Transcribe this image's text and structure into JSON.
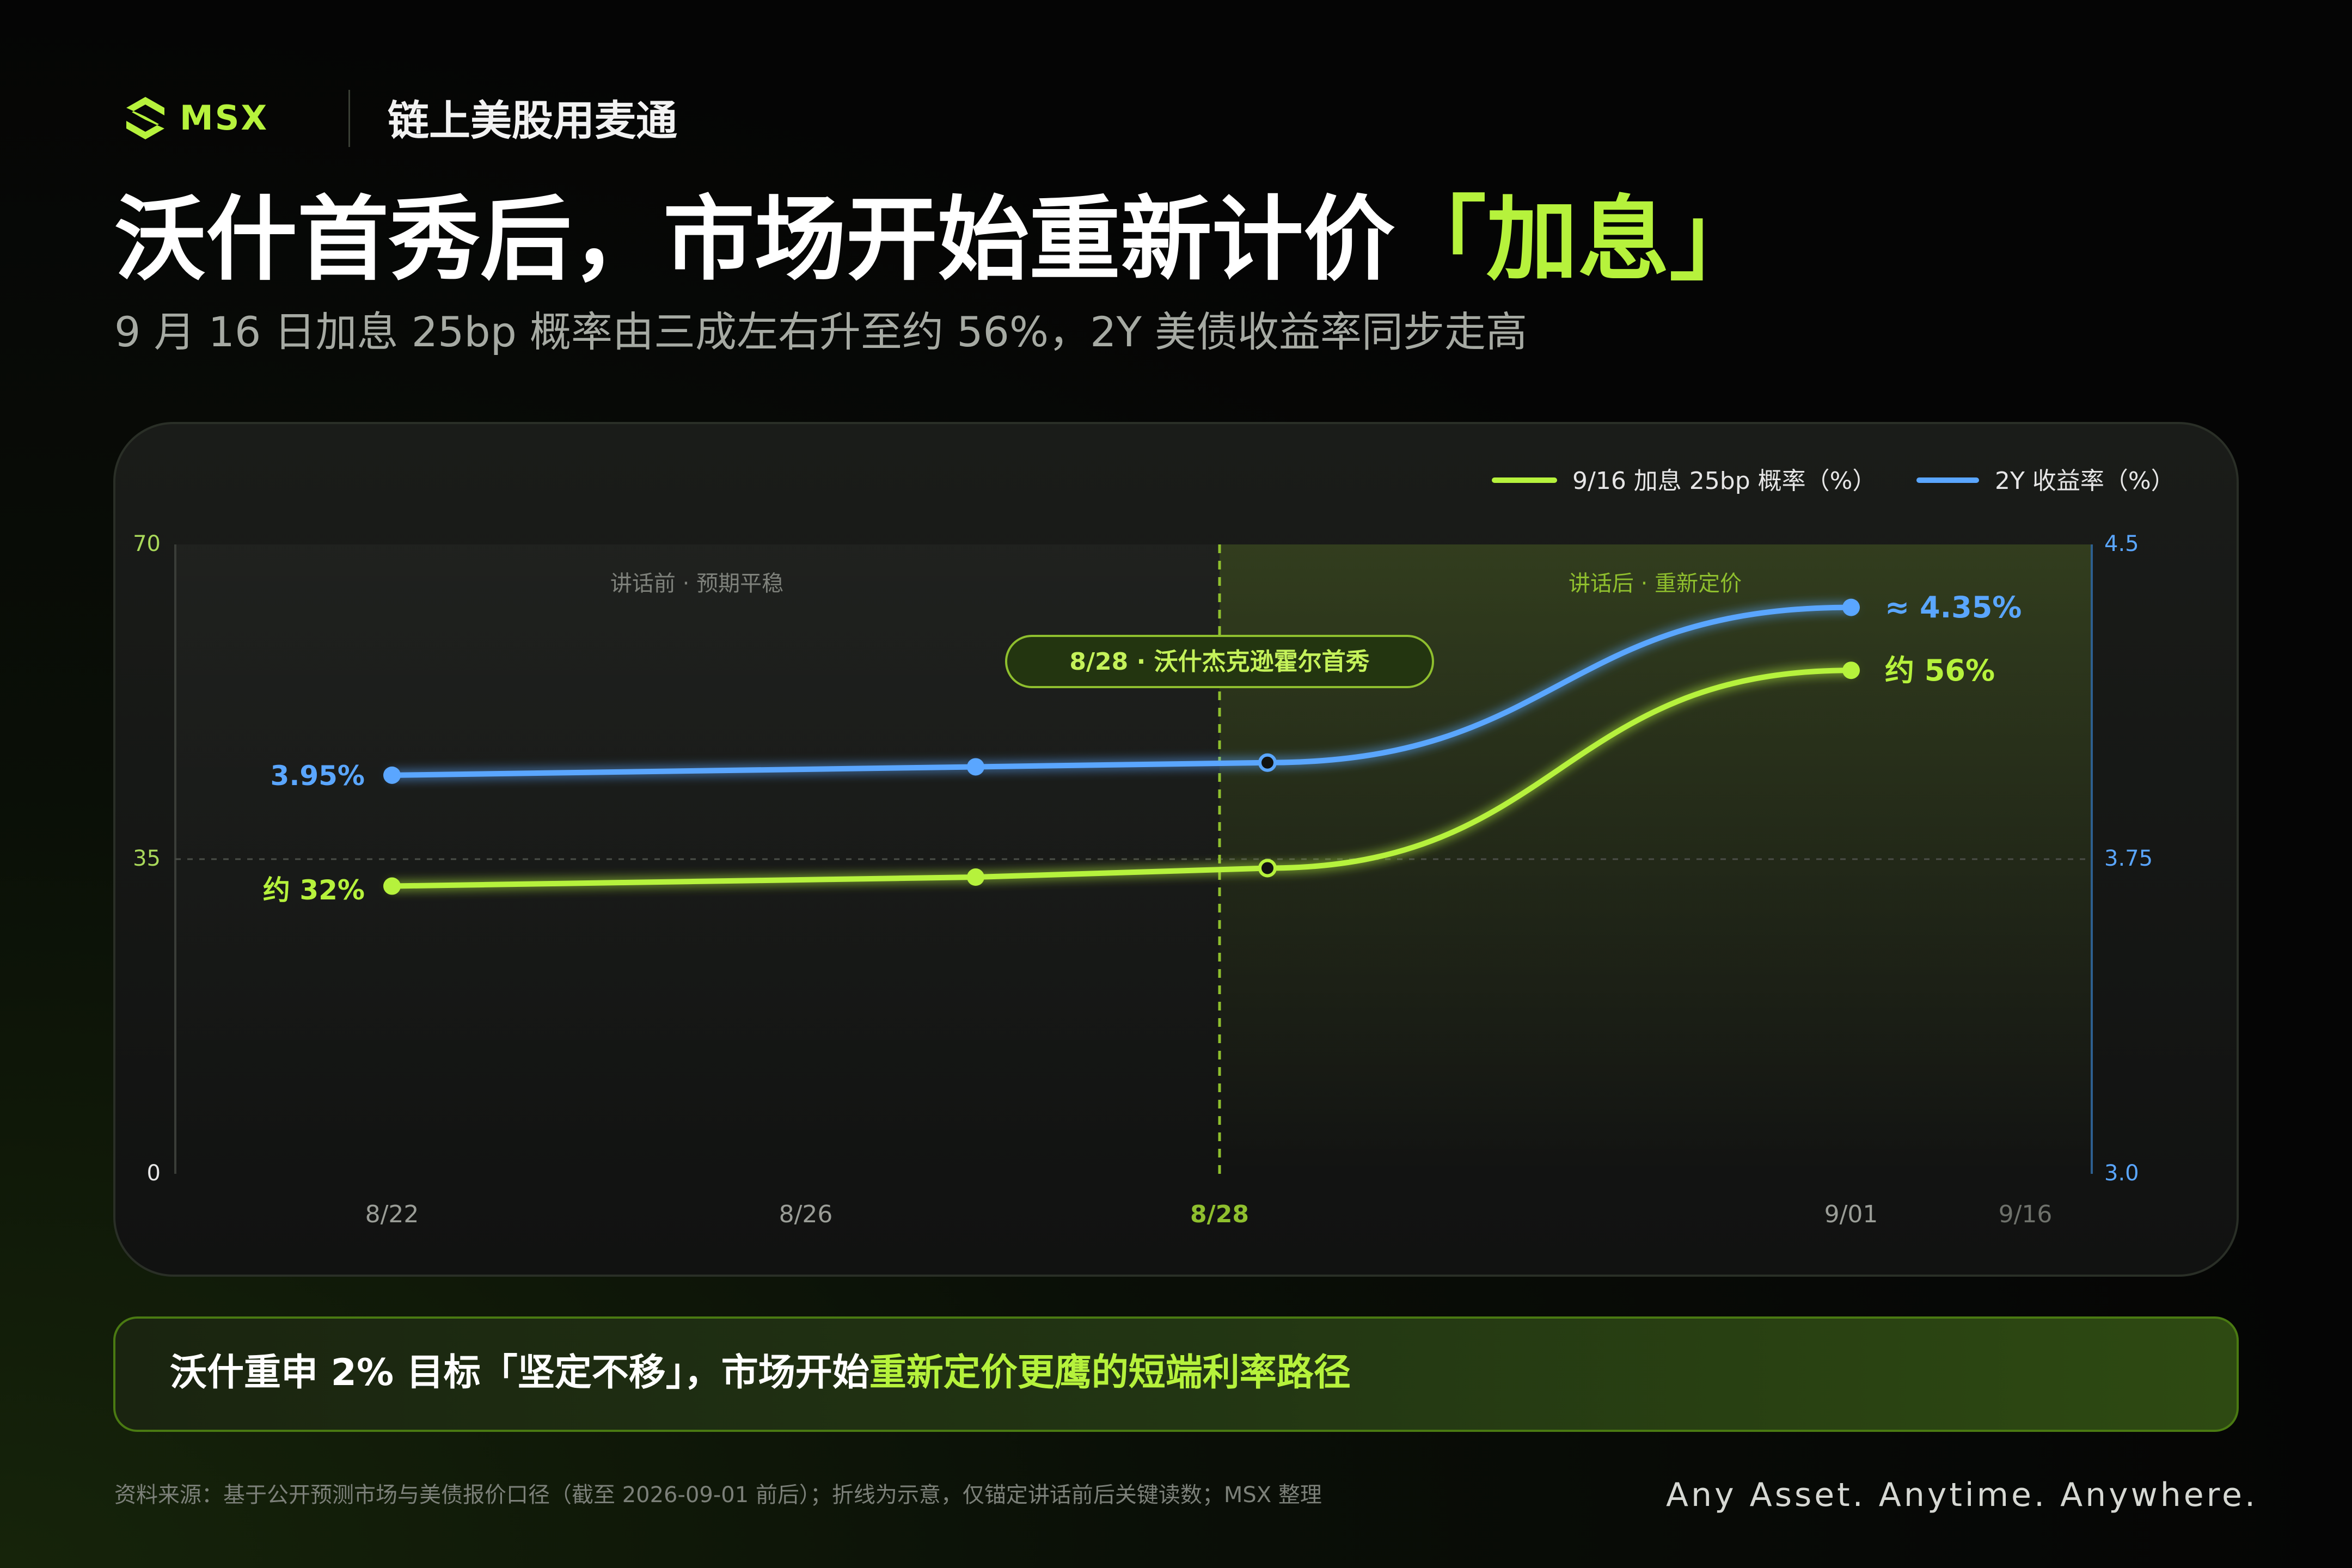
{
  "header": {
    "brand": "MSX",
    "tagline": "链上美股用麦通",
    "title_main": "沃什首秀后，市场开始重新计价",
    "title_highlight": "「加息」",
    "subtitle": "9 月 16 日加息 25bp 概率由三成左右升至约 56%，2Y 美债收益率同步走高"
  },
  "colors": {
    "accent_green": "#b6f23c",
    "accent_blue": "#5aa6ff",
    "background": "#050505"
  },
  "chart_data": {
    "type": "line",
    "title": "",
    "legend": [
      {
        "label": "9/16 加息 25bp 概率（%）",
        "color": "#b6f23c"
      },
      {
        "label": "2Y 收益率（%）",
        "color": "#5aa6ff"
      }
    ],
    "legend_position": "top-right",
    "x_ticks": [
      "8/22",
      "8/26",
      "8/28",
      "9/01",
      "9/16"
    ],
    "x_tick_values": [
      0,
      4,
      6,
      10,
      11.25
    ],
    "y_left": {
      "ticks": [
        "70",
        "35",
        "0"
      ],
      "range": [
        0,
        70
      ]
    },
    "y_right": {
      "ticks": [
        "4.5",
        "3.75",
        "3.0"
      ],
      "range": [
        3.0,
        4.5
      ]
    },
    "series": [
      {
        "name": "9/16 加息 25bp 概率（%）",
        "axis": "left",
        "color": "#b6f23c",
        "points": [
          {
            "x": 0,
            "y": 32
          },
          {
            "x": 4,
            "y": 33
          },
          {
            "x": 6,
            "y": 34
          },
          {
            "x": 10,
            "y": 56
          }
        ]
      },
      {
        "name": "2Y 收益率（%）",
        "axis": "right",
        "color": "#5aa6ff",
        "points": [
          {
            "x": 0,
            "y": 3.95
          },
          {
            "x": 4,
            "y": 3.97
          },
          {
            "x": 6,
            "y": 3.98
          },
          {
            "x": 10,
            "y": 4.35
          }
        ]
      }
    ],
    "data_labels": {
      "green_start": "约 32%",
      "green_end": "约 56%",
      "blue_start": "3.95%",
      "blue_end": "≈ 4.35%"
    },
    "regions": {
      "before": "讲话前 · 预期平稳",
      "after": "讲话后 · 重新定价"
    },
    "event": {
      "x": 6,
      "label": "8/28 · 沃什杰克逊霍尔首秀"
    },
    "grid": false
  },
  "insight": {
    "text_plain": "沃什重申 2% 目标「坚定不移」，市场开始",
    "text_highlight": "重新定价更鹰的短端利率路径"
  },
  "footer": {
    "source": "资料来源：基于公开预测市场与美债报价口径（截至 2026-09-01 前后）；折线为示意，仅锚定讲话前后关键读数；MSX 整理",
    "slogan": "Any Asset. Anytime. Anywhere."
  }
}
